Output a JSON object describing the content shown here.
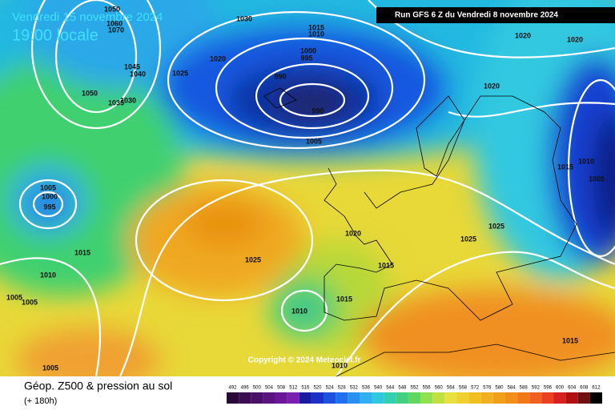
{
  "header": {
    "date": "Vendredi 15 novembre 2024",
    "time": "19:00 locale",
    "run": "Run GFS 6 Z du Vendredi 8 novembre 2024"
  },
  "copyright": "Copyright © 2024 Meteociel.fr",
  "footer": {
    "title": "Géop. Z500 & pression au sol",
    "lead": "(+ 180h)"
  },
  "legend": {
    "values": [
      492,
      496,
      500,
      504,
      508,
      512,
      516,
      520,
      524,
      528,
      532,
      536,
      540,
      544,
      548,
      552,
      556,
      560,
      564,
      568,
      572,
      576,
      580,
      584,
      588,
      592,
      596,
      600,
      604,
      608,
      612
    ],
    "colors": [
      "#2a0838",
      "#3a0c50",
      "#4a1068",
      "#5a1480",
      "#6a1898",
      "#7a20b0",
      "#1a1aa0",
      "#1c30c8",
      "#1e50e0",
      "#2070f0",
      "#2890f0",
      "#30b0f0",
      "#30c8e0",
      "#30d0b0",
      "#40d080",
      "#60d860",
      "#90e050",
      "#c0e040",
      "#e8e040",
      "#f0d030",
      "#f0c020",
      "#f0b020",
      "#f0a018",
      "#f09018",
      "#f07818",
      "#f06020",
      "#e84020",
      "#d82020",
      "#b01010",
      "#701010",
      "#000000"
    ]
  },
  "isobars": [
    "1030",
    "1015",
    "1010",
    "1020",
    "1000",
    "995",
    "990",
    "990",
    "1005",
    "1045",
    "1040",
    "1025",
    "1050",
    "1035",
    "1030",
    "1050",
    "1060",
    "1070",
    "1020",
    "1020",
    "1020",
    "1015",
    "1010",
    "1005",
    "1005",
    "1000",
    "995",
    "1015",
    "1010",
    "1005",
    "1005",
    "1025",
    "1020",
    "1015",
    "1025",
    "1025",
    "1010",
    "1015",
    "1015",
    "1005",
    "1010"
  ]
}
